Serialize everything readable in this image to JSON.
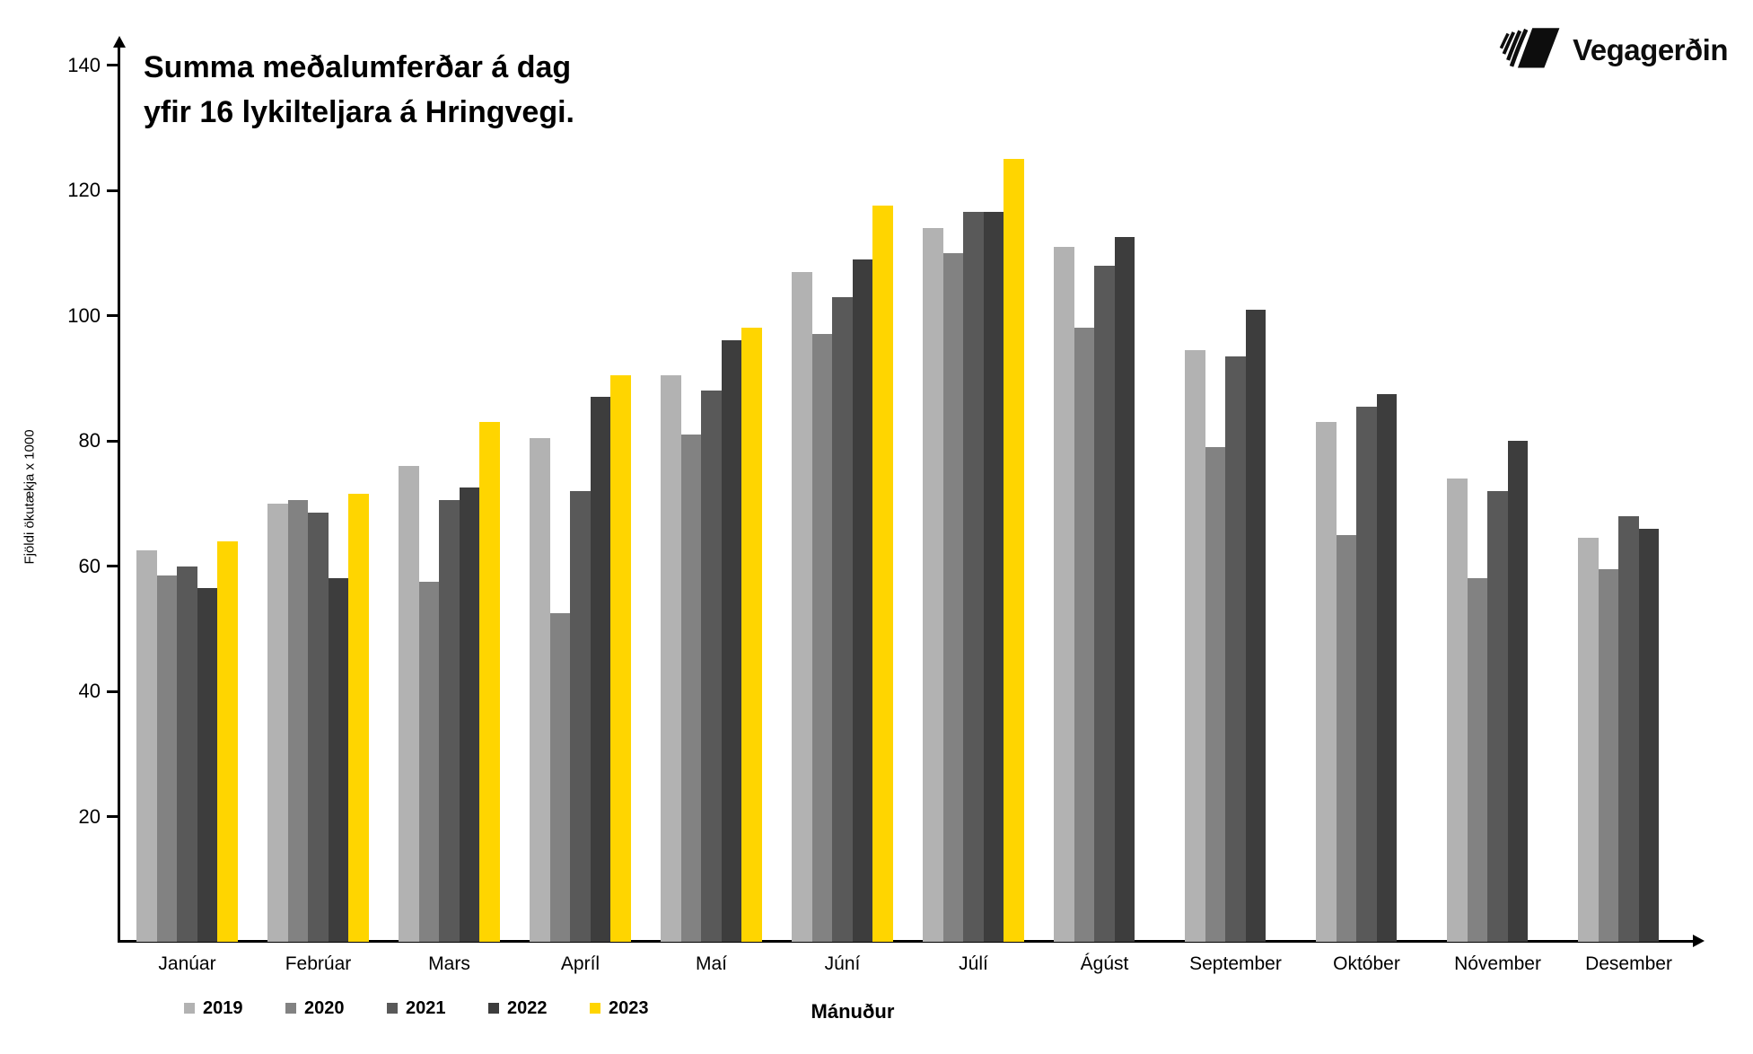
{
  "logo": {
    "text": "Vegagerðin",
    "icon": "vegagerdin-stripes-icon"
  },
  "chart_data": {
    "type": "bar",
    "title_lines": [
      "Summa meðalumferðar á dag",
      "yfir 16 lykilteljara á Hringvegi."
    ],
    "xlabel": "Mánuður",
    "ylabel": "Fjöldi ökutækja x 1000",
    "ylim": [
      0,
      140
    ],
    "yticks": [
      20,
      40,
      60,
      80,
      100,
      120,
      140
    ],
    "grid": false,
    "legend_position": "bottom",
    "categories": [
      "Janúar",
      "Febrúar",
      "Mars",
      "Apríl",
      "Maí",
      "Júní",
      "Júlí",
      "Ágúst",
      "September",
      "Október",
      "Nóvember",
      "Desember"
    ],
    "series": [
      {
        "name": "2019",
        "color": "#b2b2b2",
        "values": [
          62.5,
          70,
          76,
          80.5,
          90.5,
          107,
          114,
          111,
          94.5,
          83,
          74,
          64.5
        ]
      },
      {
        "name": "2020",
        "color": "#828282",
        "values": [
          58.5,
          70.5,
          57.5,
          52.5,
          81,
          97,
          110,
          98,
          79,
          65,
          58,
          59.5
        ]
      },
      {
        "name": "2021",
        "color": "#595959",
        "values": [
          60,
          68.5,
          70.5,
          72,
          88,
          103,
          116.5,
          108,
          93.5,
          85.5,
          72,
          68
        ]
      },
      {
        "name": "2022",
        "color": "#3d3d3d",
        "values": [
          56.5,
          58,
          72.5,
          87,
          96,
          109,
          116.5,
          112.5,
          101,
          87.5,
          80,
          66
        ]
      },
      {
        "name": "2023",
        "color": "#ffd500",
        "values": [
          64,
          71.5,
          83,
          90.5,
          98,
          117.5,
          125,
          null,
          null,
          null,
          null,
          null
        ]
      }
    ]
  }
}
